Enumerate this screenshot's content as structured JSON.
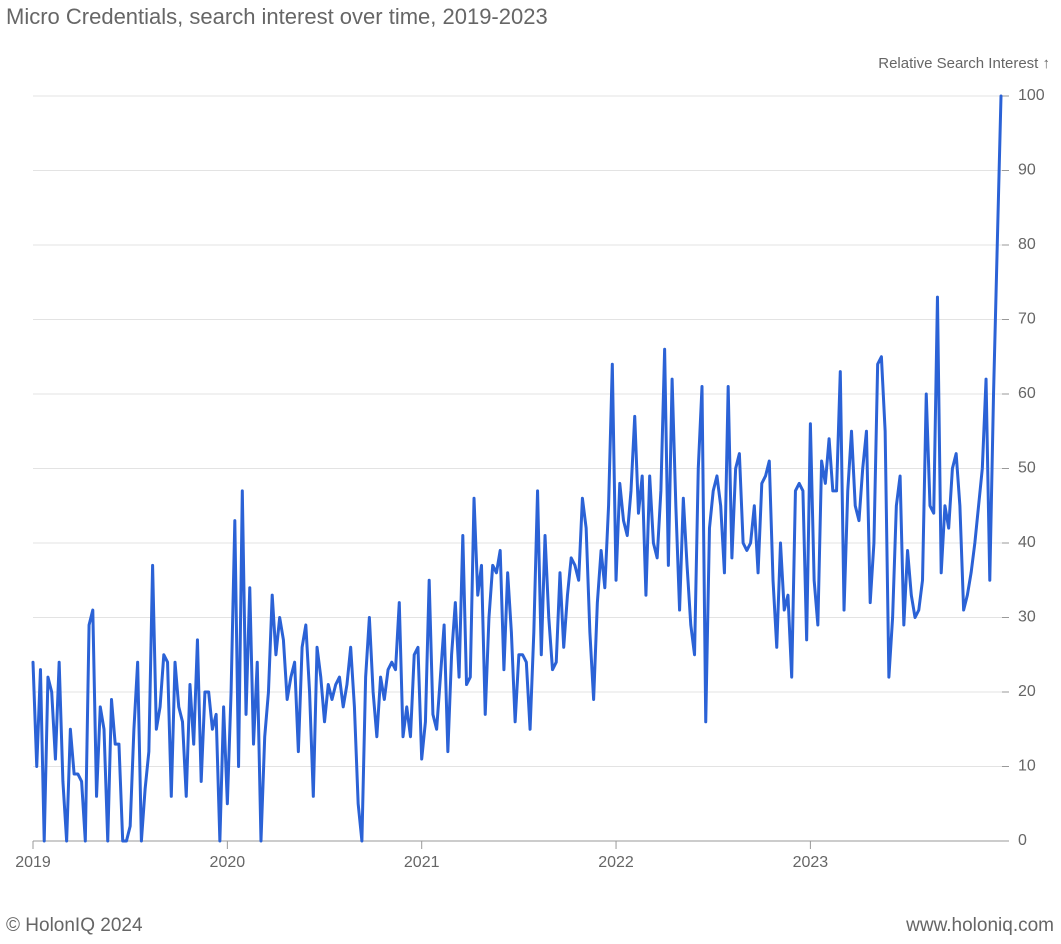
{
  "chart_data": {
    "type": "line",
    "title": "Micro Credentials, search interest over time, 2019-2023",
    "y_axis_label": "Relative Search Interest ↑",
    "footer_left": "© HolonIQ 2024",
    "footer_right": "www.holoniq.com",
    "categories": [
      "2019",
      null,
      null,
      null,
      null,
      null,
      null,
      null,
      null,
      null,
      null,
      null,
      null,
      null,
      null,
      null,
      null,
      null,
      null,
      null,
      null,
      null,
      null,
      null,
      null,
      null,
      null,
      null,
      null,
      null,
      null,
      null,
      null,
      null,
      null,
      null,
      null,
      null,
      null,
      null,
      null,
      null,
      null,
      null,
      null,
      null,
      null,
      null,
      null,
      null,
      null,
      null,
      "2020",
      null,
      null,
      null,
      null,
      null,
      null,
      null,
      null,
      null,
      null,
      null,
      null,
      null,
      null,
      null,
      null,
      null,
      null,
      null,
      null,
      null,
      null,
      null,
      null,
      null,
      null,
      null,
      null,
      null,
      null,
      null,
      null,
      null,
      null,
      null,
      null,
      null,
      null,
      null,
      null,
      null,
      null,
      null,
      null,
      null,
      null,
      null,
      null,
      null,
      null,
      null,
      "2021",
      null,
      null,
      null,
      null,
      null,
      null,
      null,
      null,
      null,
      null,
      null,
      null,
      null,
      null,
      null,
      null,
      null,
      null,
      null,
      null,
      null,
      null,
      null,
      null,
      null,
      null,
      null,
      null,
      null,
      null,
      null,
      null,
      null,
      null,
      null,
      null,
      null,
      null,
      null,
      null,
      null,
      null,
      null,
      null,
      null,
      null,
      null,
      null,
      null,
      null,
      null,
      "2022",
      null,
      null,
      null,
      null,
      null,
      null,
      null,
      null,
      null,
      null,
      null,
      null,
      null,
      null,
      null,
      null,
      null,
      null,
      null,
      null,
      null,
      null,
      null,
      null,
      null,
      null,
      null,
      null,
      null,
      null,
      null,
      null,
      null,
      null,
      null,
      null,
      null,
      null,
      null,
      null,
      null,
      null,
      null,
      null,
      null,
      null,
      null,
      null,
      null,
      null,
      null,
      "2023",
      null,
      null,
      null,
      null,
      null,
      null,
      null,
      null,
      null,
      null,
      null,
      null,
      null,
      null,
      null,
      null,
      null,
      null,
      null,
      null,
      null,
      null,
      null,
      null,
      null,
      null,
      null,
      null,
      null,
      null,
      null,
      null,
      null,
      null,
      null,
      null,
      null,
      null,
      null,
      null,
      null,
      null,
      null,
      null,
      null,
      null,
      null,
      null,
      null,
      null,
      null
    ],
    "series": [
      {
        "name": "Micro Credentials",
        "color": "#2b62d6",
        "values": [
          24,
          10,
          23,
          0,
          22,
          20,
          11,
          24,
          8,
          0,
          15,
          9,
          9,
          8,
          0,
          29,
          31,
          6,
          18,
          15,
          0,
          19,
          13,
          13,
          0,
          0,
          2,
          15,
          24,
          0,
          7,
          12,
          37,
          15,
          18,
          25,
          24,
          6,
          24,
          18,
          16,
          6,
          21,
          13,
          27,
          8,
          20,
          20,
          15,
          17,
          0,
          18,
          5,
          20,
          43,
          10,
          47,
          17,
          34,
          13,
          24,
          0,
          14,
          20,
          33,
          25,
          30,
          27,
          19,
          22,
          24,
          12,
          26,
          29,
          20,
          6,
          26,
          22,
          16,
          21,
          19,
          21,
          22,
          18,
          21,
          26,
          18,
          5,
          0,
          22,
          30,
          20,
          14,
          22,
          19,
          23,
          24,
          23,
          32,
          14,
          18,
          14,
          25,
          26,
          11,
          16,
          35,
          17,
          15,
          22,
          29,
          12,
          25,
          32,
          22,
          41,
          21,
          22,
          46,
          33,
          37,
          17,
          30,
          37,
          36,
          39,
          23,
          36,
          28,
          16,
          25,
          25,
          24,
          15,
          28,
          47,
          25,
          41,
          30,
          23,
          24,
          36,
          26,
          33,
          38,
          37,
          35,
          46,
          42,
          28,
          19,
          32,
          39,
          34,
          45,
          64,
          35,
          48,
          43,
          41,
          47,
          57,
          44,
          49,
          33,
          49,
          40,
          38,
          47,
          66,
          37,
          62,
          45,
          31,
          46,
          37,
          29,
          25,
          50,
          61,
          16,
          42,
          47,
          49,
          45,
          36,
          61,
          38,
          50,
          52,
          40,
          39,
          40,
          45,
          36,
          48,
          49,
          51,
          35,
          26,
          40,
          31,
          33,
          22,
          47,
          48,
          47,
          27,
          56,
          35,
          29,
          51,
          48,
          54,
          47,
          47,
          63,
          31,
          47,
          55,
          45,
          43,
          50,
          55,
          32,
          40,
          64,
          65,
          55,
          22,
          30,
          45,
          49,
          29,
          39,
          33,
          30,
          31,
          35,
          60,
          45,
          44,
          73,
          36,
          45,
          42,
          50,
          52,
          45,
          31,
          33,
          36,
          40,
          45,
          50,
          62,
          35,
          60,
          80,
          100
        ]
      }
    ],
    "ylim": [
      0,
      100
    ],
    "yticks": [
      0,
      10,
      20,
      30,
      40,
      50,
      60,
      70,
      80,
      90,
      100
    ],
    "grid": true
  }
}
